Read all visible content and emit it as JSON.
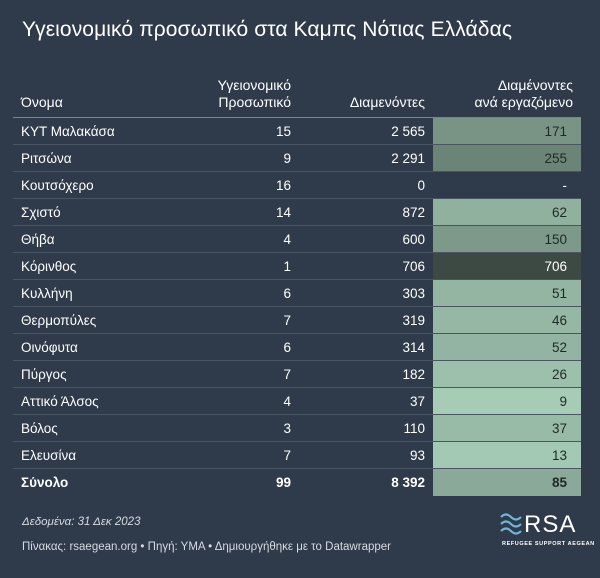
{
  "title": "Υγειονομικό προσωπικό στα Καμπς Νότιας Ελλάδας",
  "chart_data": {
    "type": "table",
    "columns": [
      "Όνομα",
      "Υγειονομικό Προσωπικό",
      "Διαμενόντες",
      "Διαμένοντες ανά εργαζόμενο"
    ],
    "header_lines": {
      "name": "Όνομα",
      "staff_line1": "Υγειονομικό",
      "staff_line2": "Προσωπικό",
      "residents": "Διαμενόντες",
      "ratio_line1": "Διαμένοντες",
      "ratio_line2": "ανά εργαζόμενο"
    },
    "rows": [
      {
        "name": "ΚΥΤ Μαλακάσα",
        "staff": "15",
        "residents": "2 565",
        "ratio": "171",
        "ratio_value": 171
      },
      {
        "name": "Ριτσώνα",
        "staff": "9",
        "residents": "2 291",
        "ratio": "255",
        "ratio_value": 255
      },
      {
        "name": "Κουτσόχερο",
        "staff": "16",
        "residents": "0",
        "ratio": "-",
        "ratio_value": null
      },
      {
        "name": "Σχιστό",
        "staff": "14",
        "residents": "872",
        "ratio": "62",
        "ratio_value": 62
      },
      {
        "name": "Θήβα",
        "staff": "4",
        "residents": "600",
        "ratio": "150",
        "ratio_value": 150
      },
      {
        "name": "Κόρινθος",
        "staff": "1",
        "residents": "706",
        "ratio": "706",
        "ratio_value": 706
      },
      {
        "name": "Κυλλήνη",
        "staff": "6",
        "residents": "303",
        "ratio": "51",
        "ratio_value": 51
      },
      {
        "name": "Θερμοπύλες",
        "staff": "7",
        "residents": "319",
        "ratio": "46",
        "ratio_value": 46
      },
      {
        "name": "Οινόφυτα",
        "staff": "6",
        "residents": "314",
        "ratio": "52",
        "ratio_value": 52
      },
      {
        "name": "Πύργος",
        "staff": "7",
        "residents": "182",
        "ratio": "26",
        "ratio_value": 26
      },
      {
        "name": "Αττικό Άλσος",
        "staff": "4",
        "residents": "37",
        "ratio": "9",
        "ratio_value": 9
      },
      {
        "name": "Βόλος",
        "staff": "3",
        "residents": "110",
        "ratio": "37",
        "ratio_value": 37
      },
      {
        "name": "Ελευσίνα",
        "staff": "7",
        "residents": "93",
        "ratio": "13",
        "ratio_value": 13
      }
    ],
    "total": {
      "name": "Σύνολο",
      "staff": "99",
      "residents": "8 392",
      "ratio": "85",
      "ratio_value": 85
    },
    "heat_colors": {
      "low": "#b3dcc5",
      "high": "#3d4a43",
      "empty": "#2f3a4a"
    }
  },
  "note": "Δεδομένα: 31 Δεκ 2023",
  "footer": "Πίνακας: rsaegean.org • Πηγή: ΥΜΑ • Δημιουργήθηκε με το Datawrapper",
  "logo": {
    "letters": "RSA",
    "tagline": "REFUGEE SUPPORT AEGEAN"
  },
  "colors": {
    "background": "#2f3a4a",
    "text": "#ffffff",
    "logo_mark": "#6fb7d9"
  }
}
